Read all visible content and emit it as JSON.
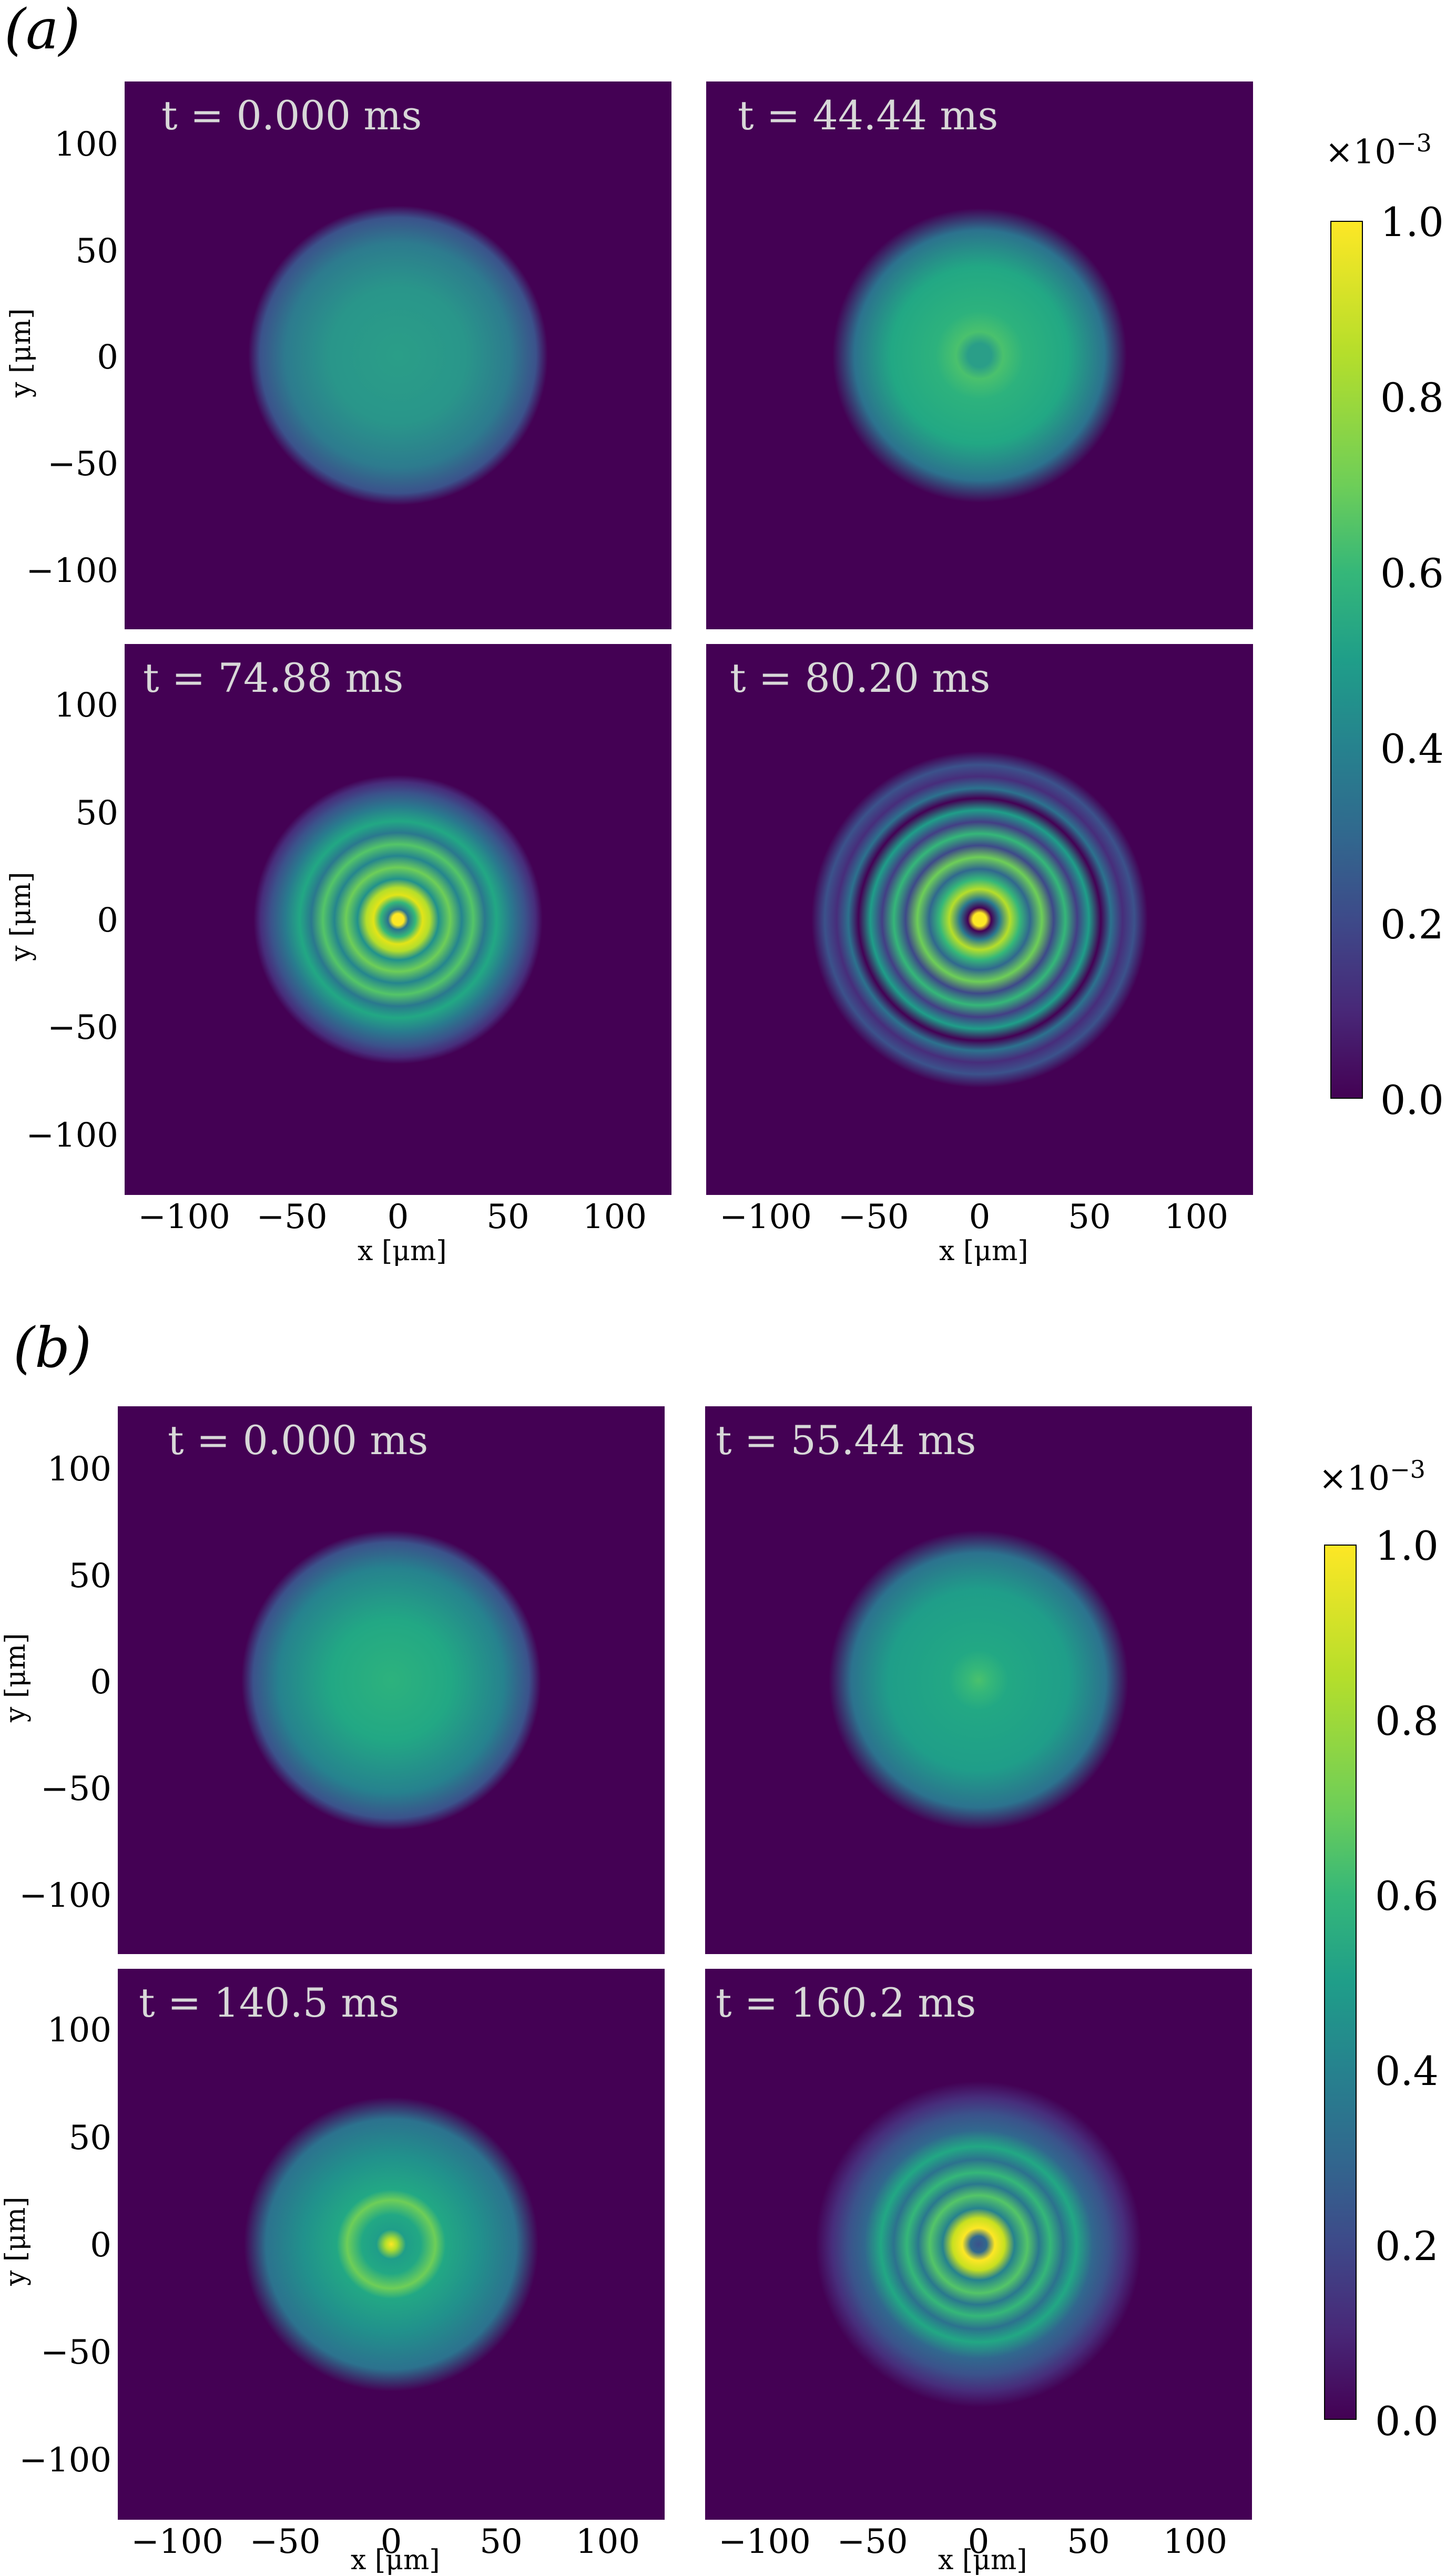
{
  "figures": [
    {
      "label": "(a)",
      "panels": [
        {
          "time": "t = 0.000 ms",
          "profile": "gaussian"
        },
        {
          "time": "t = 44.44 ms",
          "profile": "center-dip"
        },
        {
          "time": "t = 74.88 ms",
          "profile": "rings-bright"
        },
        {
          "time": "t = 80.20 ms",
          "profile": "rings-dark"
        }
      ],
      "colorbar": {
        "multiplier": "×10",
        "exponent": "−3",
        "ticks": [
          "1.0",
          "0.8",
          "0.6",
          "0.4",
          "0.2",
          "0.0"
        ]
      }
    },
    {
      "label": "(b)",
      "panels": [
        {
          "time": "t = 0.000 ms",
          "profile": "gaussian"
        },
        {
          "time": "t = 55.44 ms",
          "profile": "center-bump"
        },
        {
          "time": "t = 140.5 ms",
          "profile": "center-peak"
        },
        {
          "time": "t = 160.2 ms",
          "profile": "rings-mixed"
        }
      ],
      "colorbar": {
        "multiplier": "×10",
        "exponent": "−3",
        "ticks": [
          "1.0",
          "0.8",
          "0.6",
          "0.4",
          "0.2",
          "0.0"
        ]
      }
    }
  ],
  "axes": {
    "x_label": "x [μm]",
    "y_label": "y [μm]",
    "x_ticks": [
      "−100",
      "−50",
      "0",
      "50",
      "100"
    ],
    "y_ticks": [
      "100",
      "50",
      "0",
      "−50",
      "−100"
    ]
  },
  "chart_data": [
    {
      "type": "heatmap",
      "title": "(a)",
      "xlabel": "x [μm]",
      "ylabel": "y [μm]",
      "xlim": [
        -130,
        130
      ],
      "ylim": [
        -130,
        130
      ],
      "colorbar_range": [
        0.0,
        1.0
      ],
      "colorbar_scale": "×10^-3",
      "panels": [
        {
          "time_ms": 0.0,
          "description": "smooth Gaussian cloud, peak ~0.55, radius ~70 μm"
        },
        {
          "time_ms": 44.44,
          "description": "Gaussian cloud with small central dip and faint ring, peak ~0.65"
        },
        {
          "time_ms": 74.88,
          "description": "concentric bright rings, central spot and ring ~1.0"
        },
        {
          "time_ms": 80.2,
          "description": "concentric dark/bright rings, bright center ~1.0"
        }
      ]
    },
    {
      "type": "heatmap",
      "title": "(b)",
      "xlabel": "x [μm]",
      "ylabel": "y [μm]",
      "xlim": [
        -130,
        130
      ],
      "ylim": [
        -130,
        130
      ],
      "colorbar_range": [
        0.0,
        1.0
      ],
      "colorbar_scale": "×10^-3",
      "panels": [
        {
          "time_ms": 0.0,
          "description": "smooth Gaussian cloud, peak ~0.6"
        },
        {
          "time_ms": 55.44,
          "description": "Gaussian cloud with slight central bump ~0.7"
        },
        {
          "time_ms": 140.5,
          "description": "Gaussian with bright central peak ~1.0 and faint ring"
        },
        {
          "time_ms": 160.2,
          "description": "ring structure with bright ring near center ~0.9"
        }
      ]
    }
  ]
}
